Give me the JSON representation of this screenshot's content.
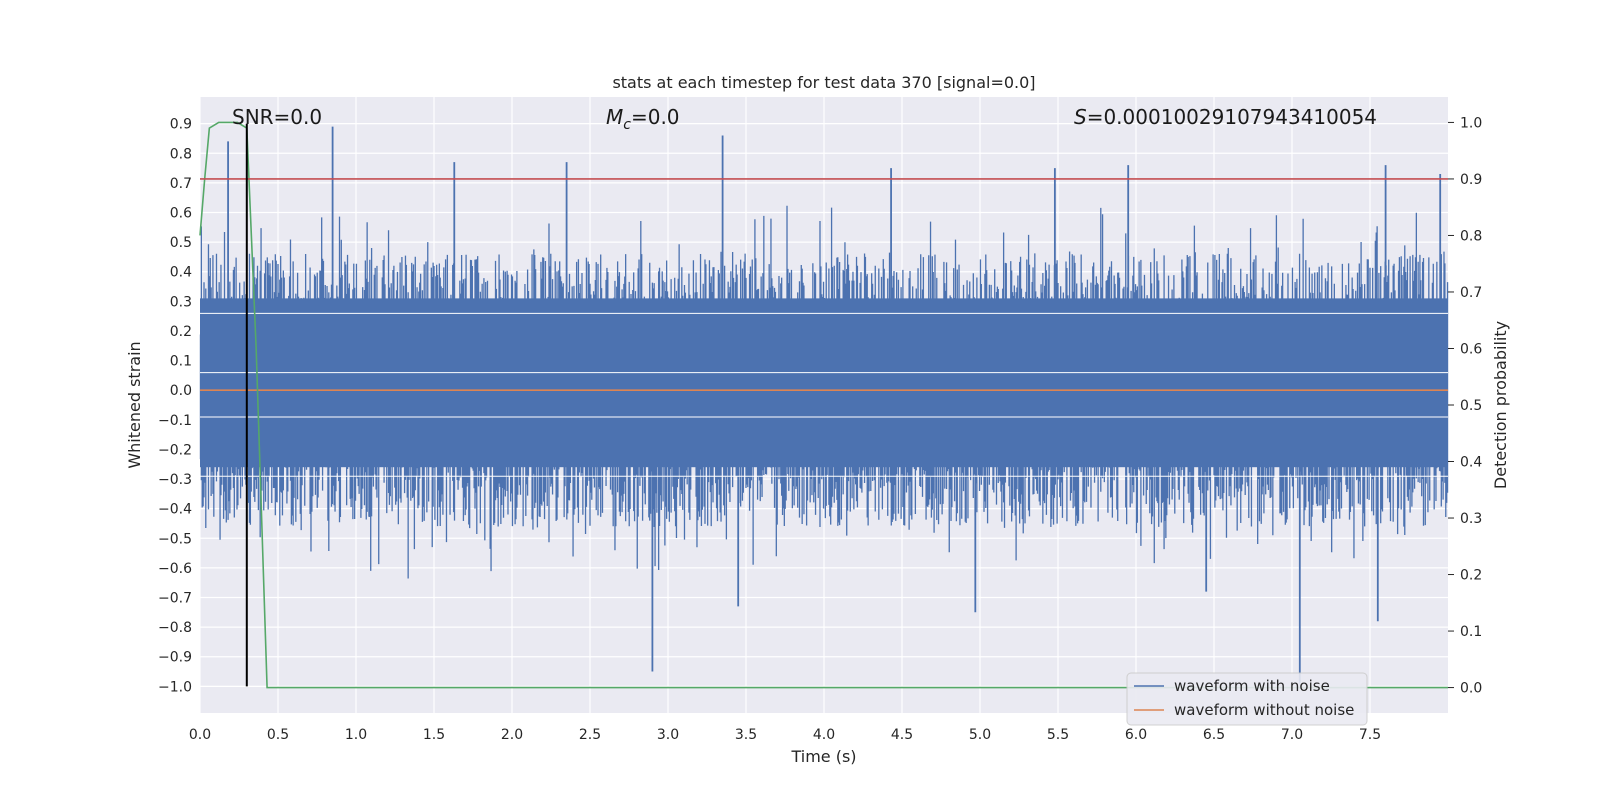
{
  "chart_data": {
    "type": "line",
    "title": "stats at each timestep for test data 370 [signal=0.0]",
    "xlabel": "Time (s)",
    "ylabel": "Whitened strain",
    "y2label": "Detection probability",
    "xlim": [
      0.0,
      8.0
    ],
    "ylim": [
      -1.09,
      0.99
    ],
    "y2lim": [
      -0.045,
      1.045
    ],
    "x_ticks": [
      0.0,
      0.5,
      1.0,
      1.5,
      2.0,
      2.5,
      3.0,
      3.5,
      4.0,
      4.5,
      5.0,
      5.5,
      6.0,
      6.5,
      7.0,
      7.5
    ],
    "x_tick_labels": [
      "0.0",
      "0.5",
      "1.0",
      "1.5",
      "2.0",
      "2.5",
      "3.0",
      "3.5",
      "4.0",
      "4.5",
      "5.0",
      "5.5",
      "6.0",
      "6.5",
      "7.0",
      "7.5"
    ],
    "y_ticks": [
      0.9,
      0.8,
      0.7,
      0.6,
      0.5,
      0.4,
      0.3,
      0.2,
      0.1,
      0.0,
      -0.1,
      -0.2,
      -0.3,
      -0.4,
      -0.5,
      -0.6,
      -0.7,
      -0.8,
      -0.9,
      -1.0
    ],
    "y_tick_labels": [
      "0.9",
      "0.8",
      "0.7",
      "0.6",
      "0.5",
      "0.4",
      "0.3",
      "0.2",
      "0.1",
      "0.0",
      "−0.1",
      "−0.2",
      "−0.3",
      "−0.4",
      "−0.5",
      "−0.6",
      "−0.7",
      "−0.8",
      "−0.9",
      "−1.0"
    ],
    "y2_ticks": [
      1.0,
      0.9,
      0.8,
      0.7,
      0.6,
      0.5,
      0.4,
      0.3,
      0.2,
      0.1,
      0.0
    ],
    "y2_tick_labels": [
      "1.0",
      "0.9",
      "0.8",
      "0.7",
      "0.6",
      "0.5",
      "0.4",
      "0.3",
      "0.2",
      "0.1",
      "0.0"
    ],
    "grid": true,
    "annotations": {
      "snr": "SNR=0.0",
      "mc_symbol": "M",
      "mc_subscript": "c",
      "mc_value": "=0.0",
      "s_symbol": "S",
      "s_value": "=0.00010029107943410054"
    },
    "series": [
      {
        "name": "waveform with noise",
        "color": "#4c72b0",
        "description": "dense noisy whitened strain, mostly within -0.5..0.5 with spikes",
        "envelope_upper_typical": 0.42,
        "envelope_lower_typical": -0.42,
        "spikes": [
          {
            "x": 0.18,
            "y": 0.84
          },
          {
            "x": 0.85,
            "y": 0.89
          },
          {
            "x": 1.63,
            "y": 0.77
          },
          {
            "x": 2.35,
            "y": 0.77
          },
          {
            "x": 3.35,
            "y": 0.86
          },
          {
            "x": 4.43,
            "y": 0.75
          },
          {
            "x": 5.48,
            "y": 0.75
          },
          {
            "x": 5.95,
            "y": 0.76
          },
          {
            "x": 7.6,
            "y": 0.76
          },
          {
            "x": 7.95,
            "y": 0.73
          },
          {
            "x": 2.9,
            "y": -0.95
          },
          {
            "x": 3.45,
            "y": -0.73
          },
          {
            "x": 4.97,
            "y": -0.75
          },
          {
            "x": 7.05,
            "y": -0.99
          },
          {
            "x": 7.55,
            "y": -0.78
          },
          {
            "x": 6.45,
            "y": -0.68
          }
        ]
      },
      {
        "name": "waveform without noise",
        "color": "#dd8452",
        "x": [
          0.0,
          8.0
        ],
        "y": [
          0.0,
          0.0
        ]
      },
      {
        "name": "detection probability",
        "color": "#55a868",
        "axis": "y2",
        "x": [
          0.0,
          0.03,
          0.06,
          0.12,
          0.18,
          0.24,
          0.3,
          0.36,
          0.43,
          8.0
        ],
        "y": [
          0.8,
          0.9,
          0.99,
          1.0,
          1.0,
          1.0,
          0.99,
          0.6,
          0.0,
          0.0
        ]
      },
      {
        "name": "threshold",
        "color": "#c44e52",
        "axis": "y2",
        "x": [
          0.0,
          8.0
        ],
        "y": [
          0.9,
          0.9
        ]
      },
      {
        "name": "marker",
        "color": "#000000",
        "x": [
          0.3,
          0.3
        ],
        "y": [
          -1.0,
          0.9
        ]
      }
    ],
    "legend": {
      "placement": "lower-right",
      "entries": [
        {
          "label": "waveform with noise",
          "color": "#4c72b0"
        },
        {
          "label": "waveform without noise",
          "color": "#dd8452"
        }
      ]
    }
  }
}
